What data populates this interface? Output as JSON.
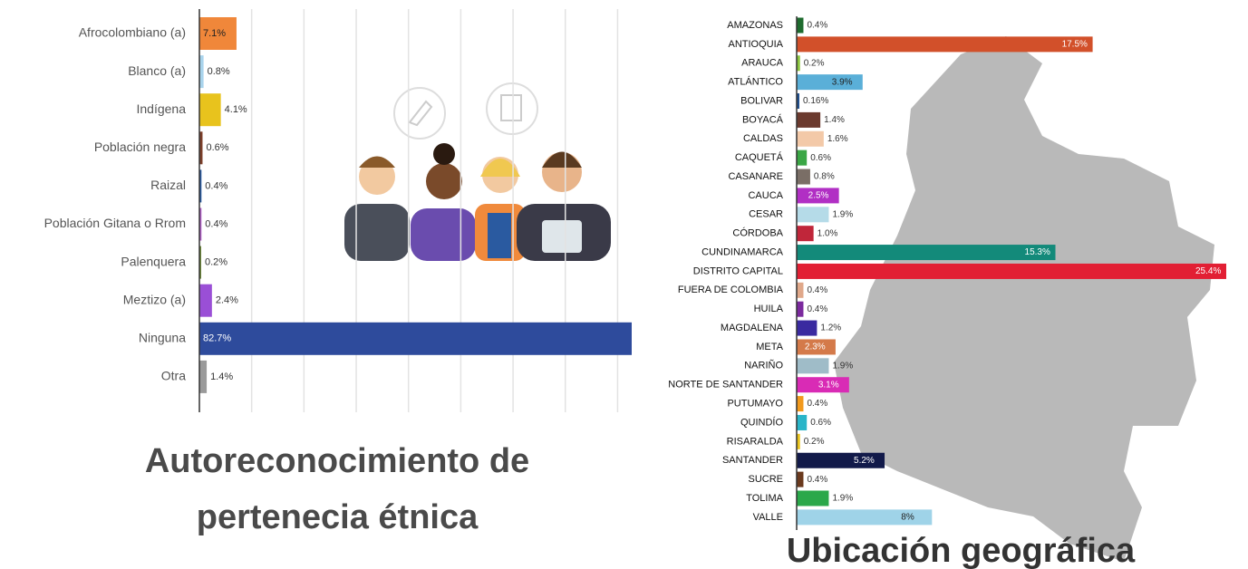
{
  "chart_data": [
    {
      "type": "bar",
      "orientation": "horizontal",
      "title": "Autoreconocimiento de pertenecia étnica",
      "categories": [
        "Afrocolombiano (a)",
        "Blanco (a)",
        "Indígena",
        "Población negra",
        "Raizal",
        "Población Gitana o Rrom",
        "Palenquera",
        "Meztizo (a)",
        "Ninguna",
        "Otra"
      ],
      "values": [
        7.1,
        0.8,
        4.1,
        0.6,
        0.4,
        0.4,
        0.2,
        2.4,
        82.7,
        1.4
      ],
      "value_labels": [
        "7.1%",
        "0.8%",
        "4.1%",
        "0.6%",
        "0.4%",
        "0.4%",
        "0.2%",
        "2.4%",
        "82.7%",
        "1.4%"
      ],
      "colors": [
        "#f0873a",
        "#a9d4ec",
        "#e8c31d",
        "#7b3f2a",
        "#2a5aa0",
        "#b05fc6",
        "#6e8a3b",
        "#9a4fd6",
        "#2e4b9c",
        "#9a9a9a"
      ],
      "xlim": [
        0,
        82.7
      ],
      "xticks": [
        10,
        20,
        30,
        40,
        50,
        60,
        70,
        80
      ],
      "grid": true
    },
    {
      "type": "bar",
      "orientation": "horizontal",
      "title": "Ubicación geográfica",
      "categories": [
        "AMAZONAS",
        "ANTIOQUIA",
        "ARAUCA",
        "ATLÁNTICO",
        "BOLIVAR",
        "BOYACÁ",
        "CALDAS",
        "CAQUETÁ",
        "CASANARE",
        "CAUCA",
        "CESAR",
        "CÓRDOBA",
        "CUNDINAMARCA",
        "DISTRITO CAPITAL",
        "FUERA DE COLOMBIA",
        "HUILA",
        "MAGDALENA",
        "META",
        "NARIÑO",
        "NORTE DE SANTANDER",
        "PUTUMAYO",
        "QUINDÍO",
        "RISARALDA",
        "SANTANDER",
        "SUCRE",
        "TOLIMA",
        "VALLE"
      ],
      "values": [
        0.4,
        17.5,
        0.2,
        3.9,
        0.16,
        1.4,
        1.6,
        0.6,
        0.8,
        2.5,
        1.9,
        1.0,
        15.3,
        25.4,
        0.4,
        0.4,
        1.2,
        2.3,
        1.9,
        3.1,
        0.4,
        0.6,
        0.2,
        5.2,
        0.4,
        1.9,
        8
      ],
      "value_labels": [
        "0.4%",
        "17.5%",
        "0.2%",
        "3.9%",
        "0.16%",
        "1.4%",
        "1.6%",
        "0.6%",
        "0.8%",
        "2.5%",
        "1.9%",
        "1.0%",
        "15.3%",
        "25.4%",
        "0.4%",
        "0.4%",
        "1.2%",
        "2.3%",
        "1.9%",
        "3.1%",
        "0.4%",
        "0.6%",
        "0.2%",
        "5.2%",
        "0.4%",
        "1.9%",
        "8%"
      ],
      "colors": [
        "#1e6b2e",
        "#d2502a",
        "#8cc63f",
        "#5aafd8",
        "#1f4e8c",
        "#6b3a2e",
        "#f3c9a8",
        "#3aa645",
        "#7a6e66",
        "#b12fc4",
        "#b5dbe8",
        "#c0263a",
        "#138a7a",
        "#e21f34",
        "#e0a88a",
        "#7b2a9e",
        "#3a2aa0",
        "#d47a4a",
        "#9fbcc8",
        "#d92bb5",
        "#f29a1e",
        "#2ab5c8",
        "#e8c31d",
        "#121a4a",
        "#6b3a1e",
        "#2aa84a",
        "#9fd3e8"
      ],
      "xlim": [
        0,
        25.4
      ]
    }
  ]
}
